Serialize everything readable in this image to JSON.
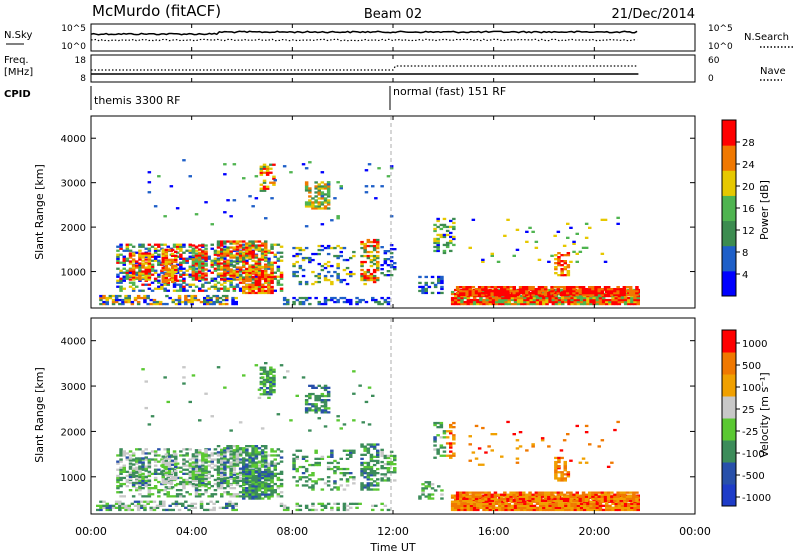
{
  "header": {
    "station": "McMurdo (fitACF)",
    "beam": "Beam 02",
    "date": "21/Dec/2014"
  },
  "strip_labels": {
    "nsky": "N.Sky",
    "nsky_ticks": [
      "10^5",
      "10^0"
    ],
    "nsearch": "N.Search",
    "nsearch_ticks": [
      "10^5",
      "10^0"
    ],
    "freq_label_1": "Freq.",
    "freq_label_2": "[MHz]",
    "freq_ticks": [
      "18",
      "8"
    ],
    "nave": "Nave",
    "nave_ticks": [
      "60",
      "0"
    ],
    "cpid": "CPID",
    "cpid_1": "themis 3300 RF",
    "cpid_2": "normal (fast) 151 RF"
  },
  "chart_data": [
    {
      "type": "heatmap",
      "name": "power",
      "ylabel": "Slant Range [km]",
      "yticks": [
        "1000",
        "2000",
        "3000",
        "4000"
      ],
      "colorbar_label": "Power [dB]",
      "colorbar_ticks": [
        "4",
        "8",
        "12",
        "16",
        "20",
        "24",
        "28"
      ],
      "colors": [
        "#0000ff",
        "#1e5fc8",
        "#3c8c50",
        "#4fb450",
        "#e6c800",
        "#f07800",
        "#ff0000"
      ]
    },
    {
      "type": "heatmap",
      "name": "velocity",
      "ylabel": "Slant Range [km]",
      "yticks": [
        "1000",
        "2000",
        "3000",
        "4000"
      ],
      "colorbar_label": "Velocity [m s⁻¹]",
      "colorbar_ticks": [
        "1000",
        "500",
        "100",
        "25",
        "-25",
        "-100",
        "-500",
        "-1000"
      ],
      "colors": [
        "#1e3cc8",
        "#2850aa",
        "#3c8c5a",
        "#5ac832",
        "#c8c8c8",
        "#f0a000",
        "#f07800",
        "#ff0000"
      ]
    }
  ],
  "xaxis": {
    "label": "Time UT",
    "ticks": [
      "00:00",
      "04:00",
      "08:00",
      "12:00",
      "16:00",
      "20:00",
      "00:00"
    ]
  }
}
